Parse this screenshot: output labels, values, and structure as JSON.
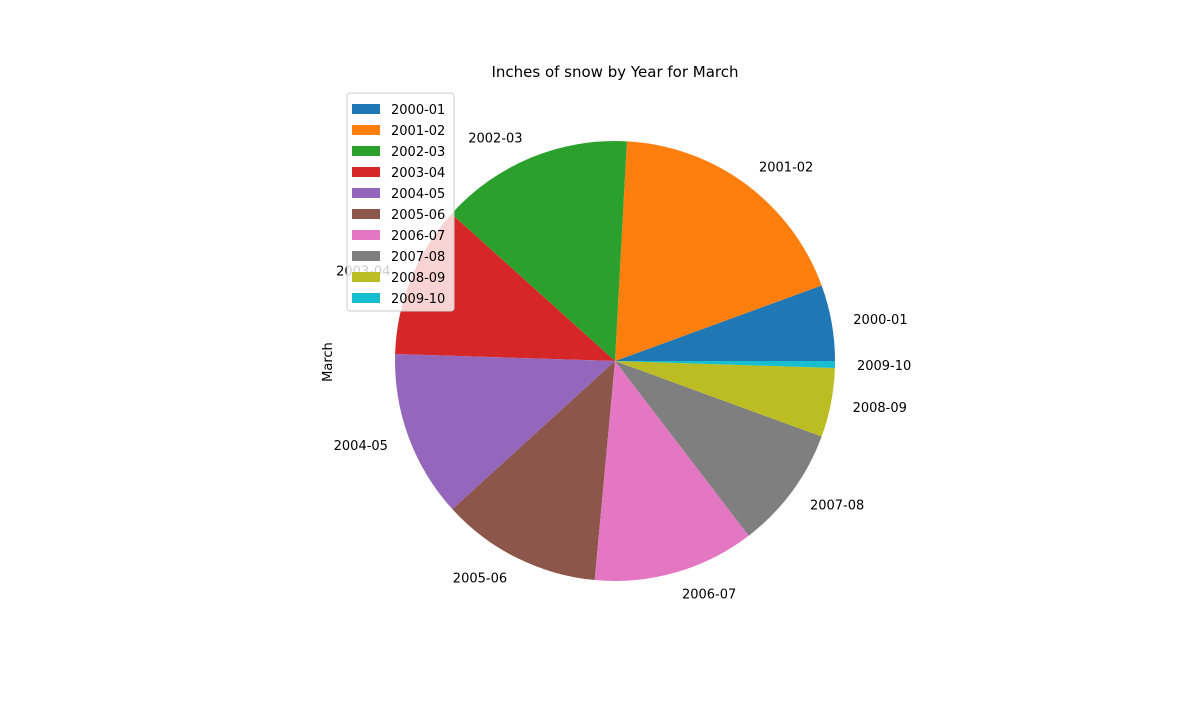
{
  "chart_data": {
    "type": "pie",
    "title": "Inches of snow by Year for March",
    "ylabel": "March",
    "categories": [
      "2000-01",
      "2001-02",
      "2002-03",
      "2003-04",
      "2004-05",
      "2005-06",
      "2006-07",
      "2007-08",
      "2008-09",
      "2009-10"
    ],
    "values": [
      5.5,
      18.3,
      14.0,
      11.0,
      12.1,
      11.6,
      11.7,
      8.9,
      5.0,
      0.5
    ],
    "colors": [
      "#1f77b4",
      "#ff7f0e",
      "#2ca02c",
      "#d62728",
      "#9467bd",
      "#8c564b",
      "#e377c2",
      "#7f7f7f",
      "#bcbd22",
      "#17becf"
    ],
    "start_angle_deg": 0,
    "direction": "counterclockwise",
    "legend_placement": "upper-left"
  }
}
